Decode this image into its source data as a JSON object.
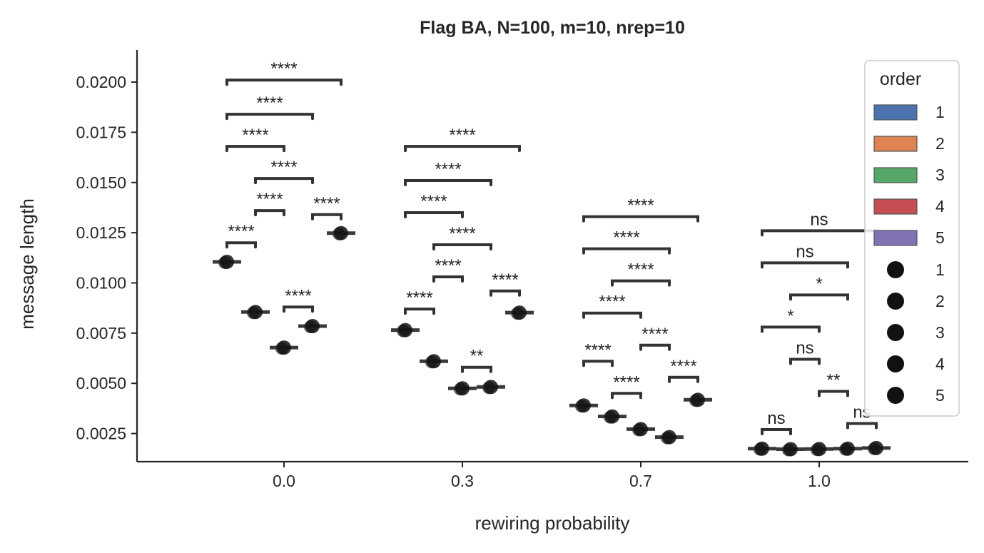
{
  "chart_data": {
    "type": "scatter",
    "title": "Flag BA, N=100, m=10, nrep=10",
    "xlabel": "rewiring probability",
    "ylabel": "message length",
    "categories": [
      "0.0",
      "0.3",
      "0.7",
      "1.0"
    ],
    "ylim": [
      0.0011,
      0.0216
    ],
    "yticks": [
      "0.0025",
      "0.0050",
      "0.0075",
      "0.0100",
      "0.0125",
      "0.0150",
      "0.0175",
      "0.0200"
    ],
    "grid": false,
    "legend_position": "right",
    "hue_colors": [
      "#4c72b0",
      "#dd8452",
      "#55a868",
      "#c44e52",
      "#8172b3"
    ],
    "series": [
      {
        "name": "1",
        "values": [
          0.01105,
          0.00765,
          0.0039,
          0.00175
        ]
      },
      {
        "name": "2",
        "values": [
          0.00855,
          0.0061,
          0.00335,
          0.00172
        ]
      },
      {
        "name": "3",
        "values": [
          0.00678,
          0.00475,
          0.00272,
          0.00173
        ]
      },
      {
        "name": "4",
        "values": [
          0.00785,
          0.00482,
          0.00232,
          0.00175
        ]
      },
      {
        "name": "5",
        "values": [
          0.01248,
          0.00852,
          0.00418,
          0.00178
        ]
      }
    ],
    "legend": {
      "title": "order",
      "hue_entries": [
        "1",
        "2",
        "3",
        "4",
        "5"
      ],
      "marker_entries": [
        "1",
        "2",
        "3",
        "4",
        "5"
      ]
    },
    "annotations": [
      {
        "group": 0,
        "from": 1,
        "to": 2,
        "y": 0.012,
        "label": "****"
      },
      {
        "group": 0,
        "from": 2,
        "to": 3,
        "y": 0.0136,
        "label": "****"
      },
      {
        "group": 0,
        "from": 3,
        "to": 4,
        "y": 0.0088,
        "label": "****"
      },
      {
        "group": 0,
        "from": 4,
        "to": 5,
        "y": 0.0134,
        "label": "****"
      },
      {
        "group": 0,
        "from": 2,
        "to": 4,
        "y": 0.0152,
        "label": "****"
      },
      {
        "group": 0,
        "from": 1,
        "to": 3,
        "y": 0.0168,
        "label": "****"
      },
      {
        "group": 0,
        "from": 1,
        "to": 4,
        "y": 0.0184,
        "label": "****"
      },
      {
        "group": 0,
        "from": 1,
        "to": 5,
        "y": 0.0201,
        "label": "****"
      },
      {
        "group": 1,
        "from": 1,
        "to": 2,
        "y": 0.0087,
        "label": "****"
      },
      {
        "group": 1,
        "from": 2,
        "to": 3,
        "y": 0.0103,
        "label": "****"
      },
      {
        "group": 1,
        "from": 3,
        "to": 4,
        "y": 0.0058,
        "label": "**"
      },
      {
        "group": 1,
        "from": 4,
        "to": 5,
        "y": 0.0096,
        "label": "****"
      },
      {
        "group": 1,
        "from": 2,
        "to": 4,
        "y": 0.0119,
        "label": "****"
      },
      {
        "group": 1,
        "from": 1,
        "to": 3,
        "y": 0.0135,
        "label": "****"
      },
      {
        "group": 1,
        "from": 1,
        "to": 4,
        "y": 0.0151,
        "label": "****"
      },
      {
        "group": 1,
        "from": 1,
        "to": 5,
        "y": 0.0168,
        "label": "****"
      },
      {
        "group": 2,
        "from": 1,
        "to": 2,
        "y": 0.0061,
        "label": "****"
      },
      {
        "group": 2,
        "from": 2,
        "to": 3,
        "y": 0.0045,
        "label": "****"
      },
      {
        "group": 2,
        "from": 3,
        "to": 4,
        "y": 0.0069,
        "label": "****"
      },
      {
        "group": 2,
        "from": 4,
        "to": 5,
        "y": 0.0053,
        "label": "****"
      },
      {
        "group": 2,
        "from": 1,
        "to": 3,
        "y": 0.0085,
        "label": "****"
      },
      {
        "group": 2,
        "from": 2,
        "to": 4,
        "y": 0.0101,
        "label": "****"
      },
      {
        "group": 2,
        "from": 1,
        "to": 4,
        "y": 0.0117,
        "label": "****"
      },
      {
        "group": 2,
        "from": 1,
        "to": 5,
        "y": 0.0133,
        "label": "****"
      },
      {
        "group": 3,
        "from": 1,
        "to": 2,
        "y": 0.0027,
        "label": "ns"
      },
      {
        "group": 3,
        "from": 2,
        "to": 3,
        "y": 0.0062,
        "label": "ns"
      },
      {
        "group": 3,
        "from": 3,
        "to": 4,
        "y": 0.0046,
        "label": "**"
      },
      {
        "group": 3,
        "from": 4,
        "to": 5,
        "y": 0.003,
        "label": "ns"
      },
      {
        "group": 3,
        "from": 1,
        "to": 3,
        "y": 0.0078,
        "label": "*"
      },
      {
        "group": 3,
        "from": 2,
        "to": 4,
        "y": 0.0094,
        "label": "*"
      },
      {
        "group": 3,
        "from": 1,
        "to": 4,
        "y": 0.011,
        "label": "ns"
      },
      {
        "group": 3,
        "from": 1,
        "to": 5,
        "y": 0.0126,
        "label": "ns"
      }
    ]
  }
}
